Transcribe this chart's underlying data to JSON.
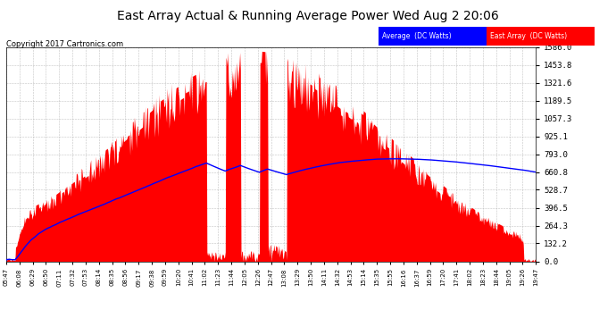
{
  "title": "East Array Actual & Running Average Power Wed Aug 2 20:06",
  "copyright": "Copyright 2017 Cartronics.com",
  "y_max": 1586.0,
  "y_ticks": [
    0.0,
    132.2,
    264.3,
    396.5,
    528.7,
    660.8,
    793.0,
    925.1,
    1057.3,
    1189.5,
    1321.6,
    1453.8,
    1586.0
  ],
  "background_color": "#ffffff",
  "grid_color": "#aaaaaa",
  "fill_color": "#ff0000",
  "line_color": "#0000ff",
  "title_color": "#000000",
  "legend_avg_bg": "#0000ff",
  "legend_east_bg": "#ff0000",
  "legend_avg_text": "Average  (DC Watts)",
  "legend_east_text": "East Array  (DC Watts)",
  "x_labels": [
    "05:47",
    "06:08",
    "06:29",
    "06:50",
    "07:11",
    "07:32",
    "07:53",
    "08:14",
    "08:35",
    "08:56",
    "09:17",
    "09:38",
    "09:59",
    "10:20",
    "10:41",
    "11:02",
    "11:23",
    "11:44",
    "12:05",
    "12:26",
    "12:47",
    "13:08",
    "13:29",
    "13:50",
    "14:11",
    "14:32",
    "14:53",
    "15:14",
    "15:35",
    "15:55",
    "16:16",
    "16:37",
    "16:59",
    "17:20",
    "17:41",
    "18:02",
    "18:23",
    "18:44",
    "19:05",
    "19:26",
    "19:47"
  ],
  "figwidth": 6.9,
  "figheight": 3.75,
  "dpi": 100
}
